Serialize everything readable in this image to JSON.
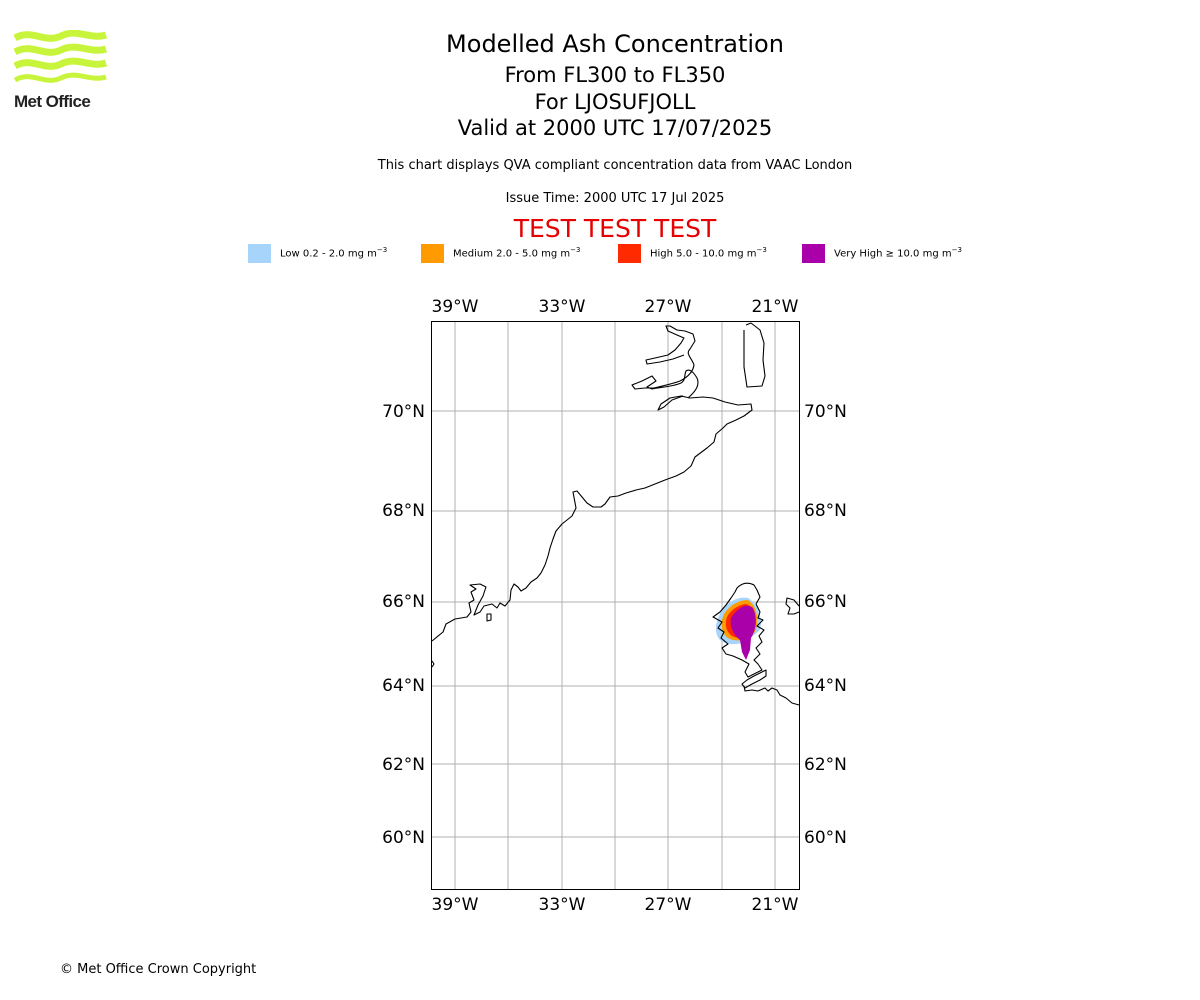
{
  "logo": {
    "text": "Met Office"
  },
  "header": {
    "title": "Modelled Ash Concentration",
    "levels": "From FL300 to FL350",
    "volcano": "For LJOSUFJOLL",
    "valid": "Valid at 2000 UTC 17/07/2025",
    "description": "This chart displays QVA compliant concentration data from VAAC London",
    "issue_time": "Issue Time: 2000 UTC 17 Jul 2025",
    "test_banner": "TEST TEST TEST"
  },
  "legend": [
    {
      "label": "Low 0.2 - 2.0 mg m",
      "unit_sup": "−3",
      "color": "#a6d4fa"
    },
    {
      "label": "Medium 2.0 - 5.0 mg m",
      "unit_sup": "−3",
      "color": "#ff9a00"
    },
    {
      "label": "High 5.0 - 10.0 mg m",
      "unit_sup": "−3",
      "color": "#ff2a00"
    },
    {
      "label": "Very High ≥ 10.0 mg m",
      "unit_sup": "−3",
      "color": "#aa00aa"
    }
  ],
  "map": {
    "lon_labels": [
      "39°W",
      "33°W",
      "27°W",
      "21°W"
    ],
    "lat_labels": [
      "70°N",
      "68°N",
      "66°N",
      "64°N",
      "62°N",
      "60°N"
    ],
    "gridline_color": "#b0b0b0",
    "coastline_color": "#000000"
  },
  "footer": {
    "copyright": "© Met Office Crown Copyright"
  }
}
